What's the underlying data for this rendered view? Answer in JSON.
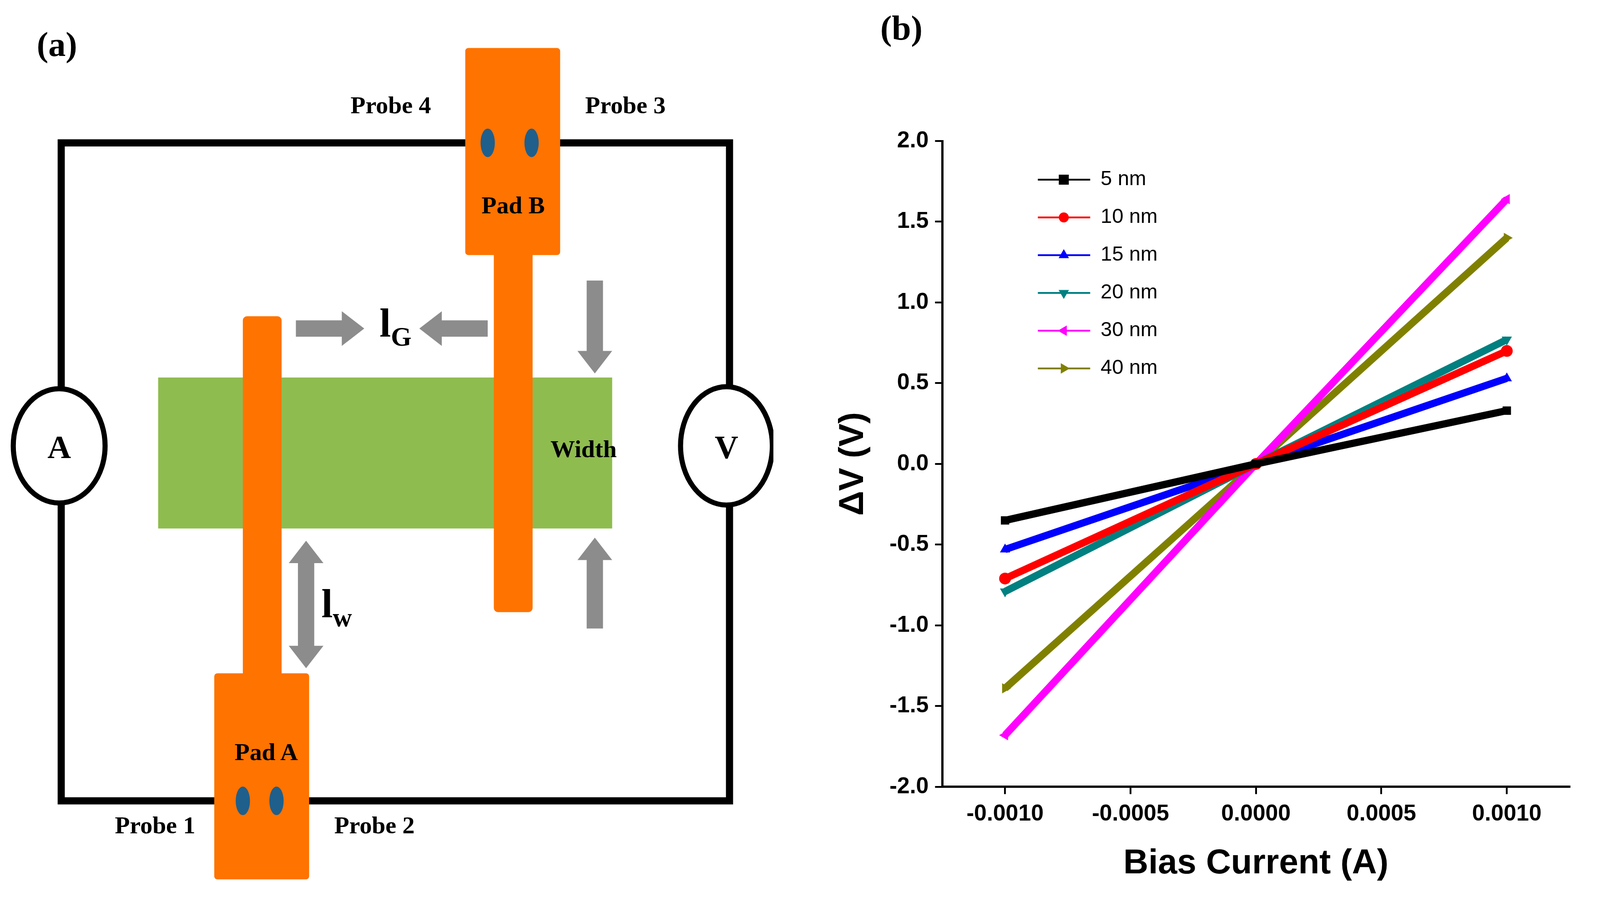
{
  "diagram": {
    "panel_label": "(a)",
    "meters": [
      {
        "label": "A"
      },
      {
        "label": "V"
      }
    ],
    "pads": [
      {
        "label": "Pad A"
      },
      {
        "label": "Pad B"
      }
    ],
    "probes": [
      "Probe 1",
      "Probe 2",
      "Probe 3",
      "Probe 4"
    ],
    "channel_label": "Width",
    "dimensions": [
      {
        "symbol": "l",
        "subscript": "G"
      },
      {
        "symbol": "l",
        "subscript": "w"
      }
    ]
  },
  "chart_data": {
    "type": "line",
    "panel_label": "(b)",
    "x_label": "Bias Current (A)",
    "y_label": "ΔV (V)",
    "x": [
      -0.001,
      0,
      0.001
    ],
    "series": [
      {
        "name": "5 nm",
        "color": "#000000",
        "marker": "square",
        "values": [
          -0.35,
          0,
          0.33
        ]
      },
      {
        "name": "10 nm",
        "color": "#ff0000",
        "marker": "circle",
        "values": [
          -0.71,
          0,
          0.7
        ]
      },
      {
        "name": "15 nm",
        "color": "#0000ff",
        "marker": "triangle-up",
        "values": [
          -0.53,
          0,
          0.53
        ]
      },
      {
        "name": "20 nm",
        "color": "#008080",
        "marker": "triangle-down",
        "values": [
          -0.79,
          0,
          0.77
        ]
      },
      {
        "name": "30 nm",
        "color": "#ff00ff",
        "marker": "triangle-left",
        "values": [
          -1.68,
          0,
          1.64
        ]
      },
      {
        "name": "40 nm",
        "color": "#808000",
        "marker": "triangle-right",
        "values": [
          -1.39,
          0,
          1.4
        ]
      }
    ],
    "xlim": [
      -0.00125,
      0.00125
    ],
    "xticks": [
      {
        "value": -0.001,
        "label": "-0.0010"
      },
      {
        "value": -0.0005,
        "label": "-0.0005"
      },
      {
        "value": 0,
        "label": "0.0000"
      },
      {
        "value": 0.0005,
        "label": "0.0005"
      },
      {
        "value": 0.001,
        "label": "0.0010"
      }
    ],
    "ylim": [
      -2,
      2
    ],
    "yticks": [
      {
        "value": -2,
        "label": "-2.0"
      },
      {
        "value": -1.5,
        "label": "-1.5"
      },
      {
        "value": -1,
        "label": "-1.0"
      },
      {
        "value": -0.5,
        "label": "-0.5"
      },
      {
        "value": 0,
        "label": "0.0"
      },
      {
        "value": 0.5,
        "label": "0.5"
      },
      {
        "value": 1,
        "label": "1.0"
      },
      {
        "value": 1.5,
        "label": "1.5"
      },
      {
        "value": 2,
        "label": "2.0"
      }
    ],
    "grid": false,
    "legend": "upper left"
  }
}
